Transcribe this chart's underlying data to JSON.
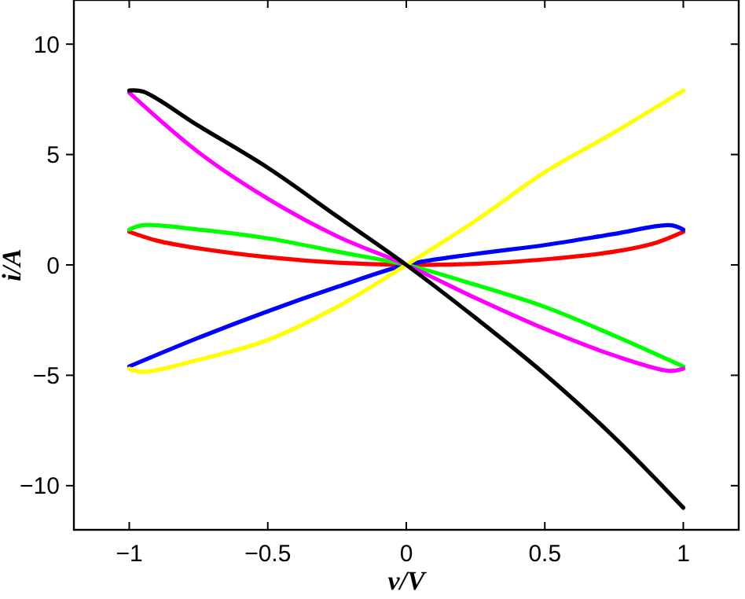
{
  "chart_data": {
    "type": "line",
    "xlabel": "v/V",
    "ylabel": "i/A",
    "xlim": [
      -1.2,
      1.2
    ],
    "ylim": [
      -12,
      12
    ],
    "xticks": [
      -1,
      -0.5,
      0,
      0.5,
      1
    ],
    "yticks": [
      -10,
      -5,
      0,
      5,
      10
    ],
    "grid": false,
    "marker": "none",
    "line_style": "solid",
    "series": [
      {
        "color": "#ff0000",
        "x": [
          -1,
          -0.9,
          -0.75,
          -0.5,
          -0.25,
          0,
          0.25,
          0.5,
          0.75,
          0.9,
          1
        ],
        "values": [
          1.5,
          1.1,
          0.75,
          0.35,
          0.1,
          0,
          0.05,
          0.25,
          0.6,
          1.0,
          1.5
        ]
      },
      {
        "color": "#0000ff",
        "x": [
          -1,
          -0.75,
          -0.5,
          -0.25,
          0,
          0.25,
          0.5,
          0.75,
          0.95,
          1
        ],
        "values": [
          -4.6,
          -3.3,
          -2.1,
          -1.0,
          0,
          0.5,
          0.9,
          1.4,
          1.8,
          1.6
        ]
      },
      {
        "color": "#00ff00",
        "x": [
          -1,
          -0.95,
          -0.75,
          -0.5,
          -0.25,
          0,
          0.25,
          0.5,
          0.75,
          1
        ],
        "values": [
          1.6,
          1.8,
          1.6,
          1.2,
          0.6,
          0,
          -0.9,
          -1.9,
          -3.2,
          -4.6
        ]
      },
      {
        "color": "#ff00ff",
        "x": [
          -1,
          -0.75,
          -0.5,
          -0.25,
          0,
          0.25,
          0.5,
          0.75,
          0.95,
          1
        ],
        "values": [
          7.8,
          5.1,
          3.0,
          1.3,
          0,
          -1.5,
          -2.9,
          -4.1,
          -4.8,
          -4.7
        ]
      },
      {
        "color": "#ffff00",
        "x": [
          -1,
          -0.95,
          -0.75,
          -0.5,
          -0.25,
          0,
          0.25,
          0.5,
          0.75,
          1
        ],
        "values": [
          -4.7,
          -4.85,
          -4.3,
          -3.4,
          -1.9,
          0,
          2.0,
          4.2,
          6.0,
          7.9
        ]
      },
      {
        "color": "#000000",
        "x": [
          -1,
          -0.95,
          -0.75,
          -0.5,
          -0.25,
          0,
          0.25,
          0.5,
          0.75,
          1
        ],
        "values": [
          7.9,
          7.85,
          6.3,
          4.4,
          2.2,
          0,
          -2.4,
          -4.95,
          -7.8,
          -11
        ]
      }
    ]
  }
}
